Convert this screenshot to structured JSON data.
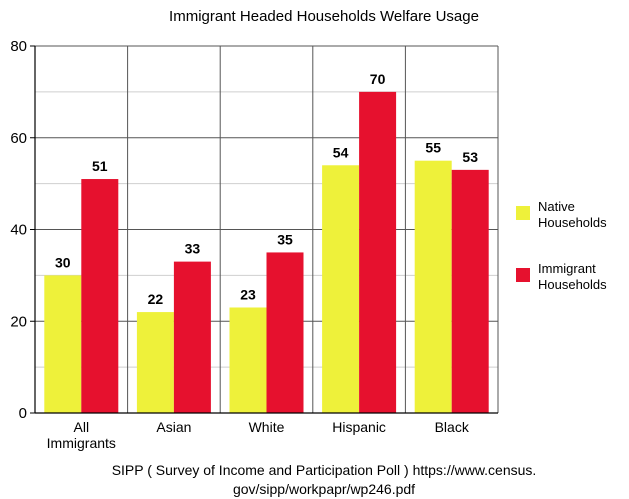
{
  "chart_data": {
    "type": "bar",
    "title": "Immigrant Headed Households Welfare Usage",
    "categories": [
      [
        "All",
        "Immigrants"
      ],
      [
        "Asian"
      ],
      [
        "White"
      ],
      [
        "Hispanic"
      ],
      [
        "Black"
      ]
    ],
    "series": [
      {
        "name": [
          "Native",
          "Households"
        ],
        "color": "#eef13a",
        "values": [
          30,
          22,
          23,
          54,
          55
        ]
      },
      {
        "name": [
          "Immigrant",
          "Households"
        ],
        "color": "#e6112e",
        "values": [
          51,
          33,
          35,
          70,
          53
        ]
      }
    ],
    "ylim": [
      0,
      80
    ],
    "yticks": [
      0,
      20,
      40,
      60,
      80
    ],
    "grid": true,
    "legend_position": "right",
    "xlabel": "",
    "ylabel": "",
    "source": [
      "SIPP ( Survey of Income and Participation Poll ) https://www.census.",
      "gov/sipp/workpapr/wp246.pdf"
    ]
  }
}
